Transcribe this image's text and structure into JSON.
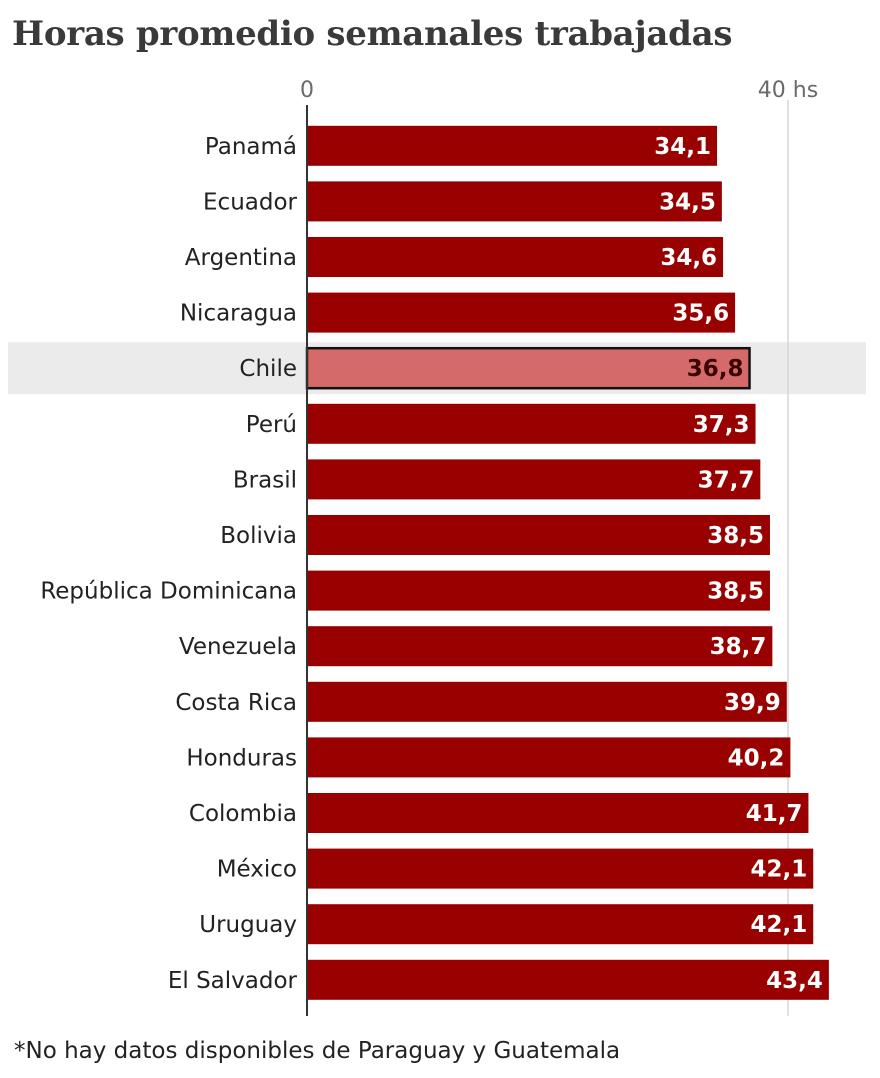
{
  "title": "Horas promedio semanales trabajadas",
  "footnote": "*No hay datos disponibles de Paraguay y Guatemala",
  "chart_data": {
    "type": "bar",
    "orientation": "horizontal",
    "title": "Horas promedio semanales trabajadas",
    "categories": [
      "Panamá",
      "Ecuador",
      "Argentina",
      "Nicaragua",
      "Chile",
      "Perú",
      "Brasil",
      "Bolivia",
      "República Dominicana",
      "Venezuela",
      "Costa Rica",
      "Honduras",
      "Colombia",
      "México",
      "Uruguay",
      "El Salvador"
    ],
    "values": [
      34.1,
      34.5,
      34.6,
      35.6,
      36.8,
      37.3,
      37.7,
      38.5,
      38.5,
      38.7,
      39.9,
      40.2,
      41.7,
      42.1,
      42.1,
      43.4
    ],
    "value_labels": [
      "34,1",
      "34,5",
      "34,6",
      "35,6",
      "36,8",
      "37,3",
      "37,7",
      "38,5",
      "38,5",
      "38,7",
      "39,9",
      "40,2",
      "41,7",
      "42,1",
      "42,1",
      "43,4"
    ],
    "highlight": "Chile",
    "xlim": [
      0,
      40
    ],
    "x_ticks": [
      0,
      40
    ],
    "x_tick_labels": [
      "0",
      "40 hs"
    ],
    "grid": true,
    "colors": {
      "bar": "#990000",
      "highlight_bar": "#d46a6a",
      "highlight_row": "#ebebeb",
      "highlight_label": "#3a0000"
    }
  }
}
